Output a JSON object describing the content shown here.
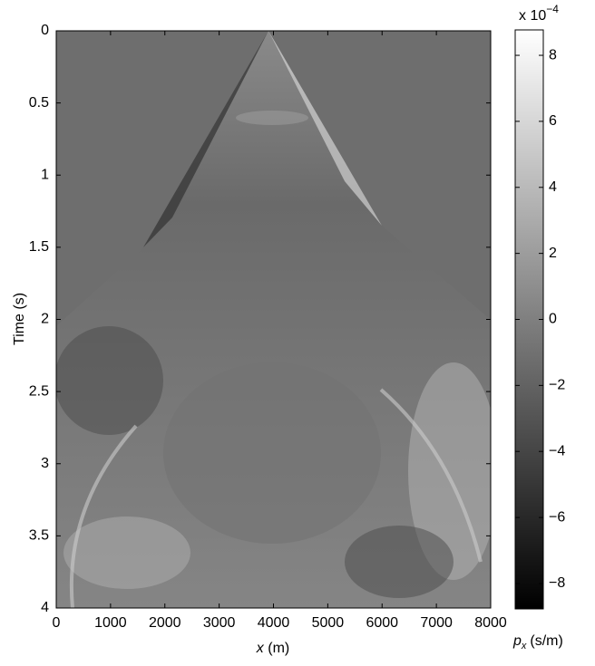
{
  "chart_data": {
    "type": "image",
    "ylabel": "Time (s)",
    "xlabel": {
      "var": "x",
      "unit": "(m)"
    },
    "xlim": [
      0,
      8000
    ],
    "xticks": [
      0,
      1000,
      2000,
      3000,
      4000,
      5000,
      6000,
      7000,
      8000
    ],
    "ylim": [
      0,
      4
    ],
    "yticks": [
      0,
      0.5,
      1,
      1.5,
      2,
      2.5,
      3,
      3.5,
      4
    ],
    "y_inverted": true,
    "colorbar": {
      "clim": [
        -8.77,
        8.77
      ],
      "ticks": [
        {
          "value": -8,
          "label": "−8"
        },
        {
          "value": -6,
          "label": "−6"
        },
        {
          "value": -4,
          "label": "−4"
        },
        {
          "value": -2,
          "label": "−2"
        },
        0,
        2,
        4,
        6,
        8
      ],
      "scale": {
        "prefix": "x 10",
        "exponent": "−4"
      },
      "label": {
        "var": "p",
        "sub": "x",
        "unit": "(s/m)"
      }
    }
  }
}
